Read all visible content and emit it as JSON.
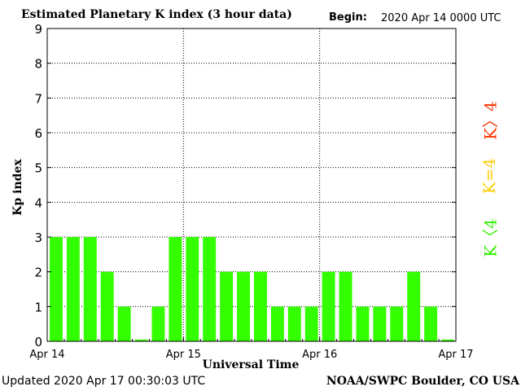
{
  "header": {
    "title": "Estimated Planetary K index (3 hour data)",
    "begin_label": "Begin:",
    "begin_value": "2020 Apr 14 0000 UTC"
  },
  "footer": {
    "updated": "Updated 2020 Apr 17 00:30:03 UTC",
    "credit": "NOAA/SWPC Boulder, CO USA"
  },
  "legend": {
    "high": "K〉4",
    "equal": "K=4",
    "low": "K〈4"
  },
  "colors": {
    "bar": "#33ff00",
    "high": "#ff3300",
    "equal": "#ffcc00",
    "low": "#33ee00"
  },
  "chart_data": {
    "type": "bar",
    "title": "Estimated Planetary K index (3 hour data)",
    "xlabel": "Universal Time",
    "ylabel": "Kp index",
    "ylim": [
      0,
      9
    ],
    "yticks": [
      "0",
      "1",
      "2",
      "3",
      "4",
      "5",
      "6",
      "7",
      "8",
      "9"
    ],
    "xticks": [
      "Apr 14",
      "Apr 15",
      "Apr 16",
      "Apr 17"
    ],
    "bar_interval_hours": 3,
    "grid": true,
    "values": [
      3,
      3,
      3,
      2,
      1,
      0.05,
      1,
      3,
      3,
      3,
      2,
      2,
      2,
      1,
      1,
      1,
      2,
      2,
      1,
      1,
      1,
      2,
      1,
      0.05
    ]
  }
}
